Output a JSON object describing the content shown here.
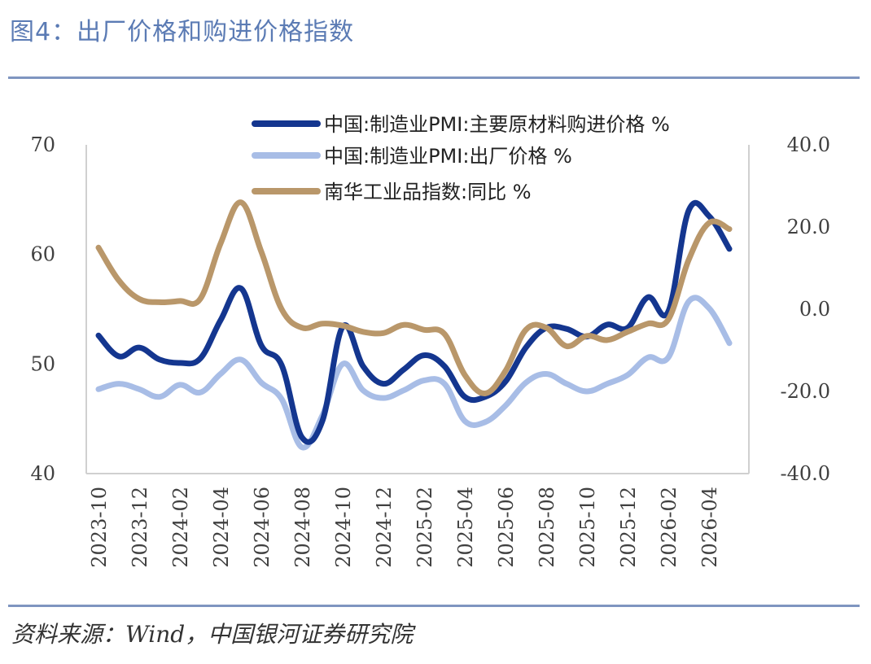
{
  "figure": {
    "title": "图4：出厂价格和购进价格指数",
    "source": "资料来源：Wind，中国银河证券研究院"
  },
  "colors": {
    "title": "#5b7bb4",
    "rule": "#7f95c0",
    "axis": "#d0d0d0"
  },
  "chart_data": {
    "type": "line",
    "title": "",
    "xlabel": "",
    "ylabel": "",
    "grid": false,
    "legend_position": "top",
    "x_tick_labels": [
      "2023-10",
      "2023-12",
      "2024-02",
      "2024-04",
      "2024-06",
      "2024-08",
      "2024-10",
      "2024-12",
      "2025-02",
      "2025-04",
      "2025-06",
      "2025-08",
      "2025-10",
      "2025-12",
      "2026-02",
      "2026-04"
    ],
    "x": [
      "2023-10",
      "2023-11",
      "2023-12",
      "2024-01",
      "2024-02",
      "2024-03",
      "2024-04",
      "2024-05",
      "2024-06",
      "2024-07",
      "2024-08",
      "2024-09",
      "2024-10",
      "2024-11",
      "2024-12",
      "2025-01",
      "2025-02",
      "2025-03",
      "2025-04",
      "2025-05",
      "2025-06",
      "2025-07",
      "2025-08",
      "2025-09",
      "2025-10",
      "2025-11",
      "2025-12",
      "2026-01",
      "2026-02",
      "2026-03",
      "2026-04",
      "2026-05"
    ],
    "left_axis": {
      "ylim": [
        40,
        70
      ],
      "ticks": [
        "40",
        "50",
        "60",
        "70"
      ]
    },
    "right_axis": {
      "ylim": [
        -40,
        40
      ],
      "ticks": [
        "-40.0",
        "-20.0",
        "0.0",
        "20.0",
        "40.0"
      ]
    },
    "series": [
      {
        "name": "中国:制造业PMI:主要原材料购进价格 %",
        "axis": "left",
        "color": "#14368f",
        "width": 7,
        "values": [
          52.6,
          50.7,
          51.5,
          50.4,
          50.1,
          50.5,
          54.0,
          56.9,
          51.7,
          49.9,
          43.3,
          44.8,
          53.4,
          49.8,
          48.2,
          49.5,
          50.8,
          49.8,
          47.0,
          47.0,
          48.4,
          51.5,
          53.3,
          53.2,
          52.5,
          53.6,
          53.3,
          56.1,
          54.8,
          64.0,
          63.5,
          60.5
        ]
      },
      {
        "name": "中国:制造业PMI:出厂价格 %",
        "axis": "left",
        "color": "#a8bde6",
        "width": 7,
        "values": [
          47.7,
          48.2,
          47.7,
          47.0,
          48.1,
          47.4,
          49.1,
          50.4,
          48.3,
          46.8,
          42.4,
          45.3,
          50.0,
          47.6,
          46.9,
          47.6,
          48.5,
          48.2,
          44.8,
          44.7,
          46.2,
          48.3,
          49.1,
          48.2,
          47.5,
          48.2,
          49.0,
          50.6,
          50.6,
          55.7,
          55.1,
          51.9
        ]
      },
      {
        "name": "南华工业品指数:同比 %",
        "axis": "right",
        "color": "#b9976a",
        "width": 7,
        "values": [
          15.0,
          7.0,
          2.5,
          1.7,
          2.0,
          2.5,
          16.0,
          26.0,
          14.0,
          0.0,
          -4.5,
          -3.5,
          -4.0,
          -5.5,
          -5.8,
          -3.8,
          -5.0,
          -6.0,
          -16.0,
          -20.5,
          -15.0,
          -5.0,
          -4.5,
          -9.0,
          -6.5,
          -7.5,
          -5.5,
          -3.5,
          -2.5,
          12.0,
          21.0,
          19.5
        ]
      }
    ]
  }
}
